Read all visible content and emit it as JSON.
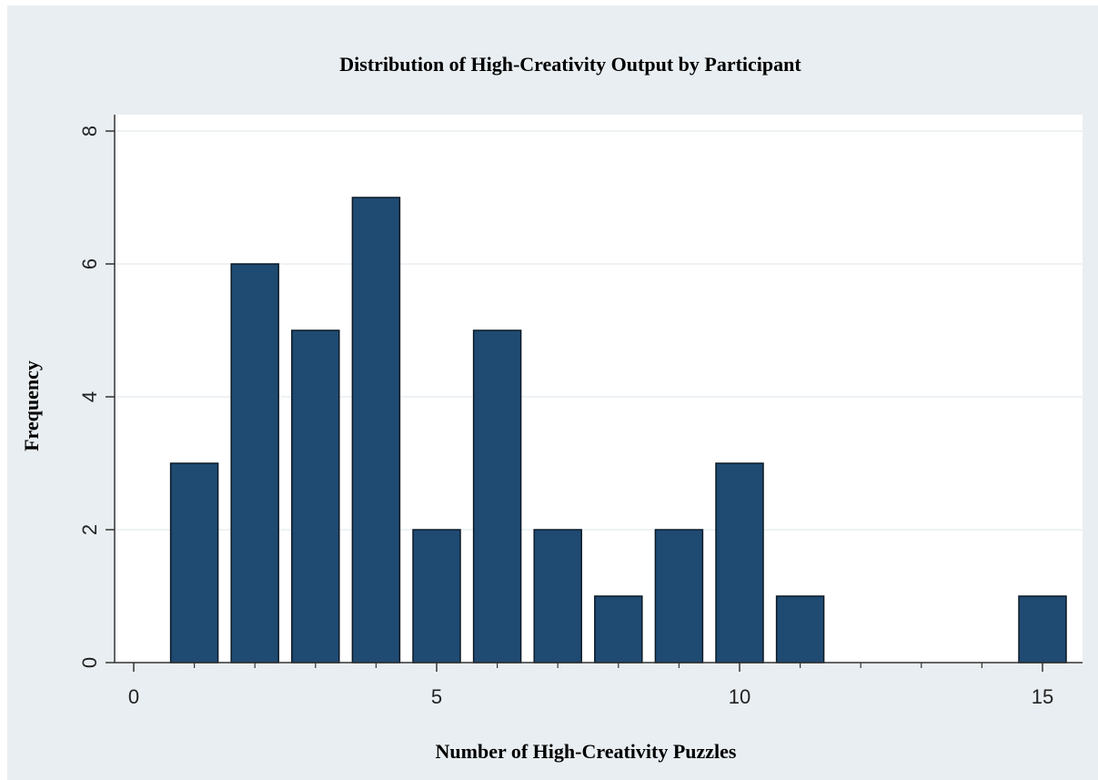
{
  "chart_data": {
    "type": "bar",
    "title": "Distribution of High-Creativity Output by Participant",
    "xlabel": "Number of High-Creativity Puzzles",
    "ylabel": "Frequency",
    "x": [
      1,
      2,
      3,
      4,
      5,
      6,
      7,
      8,
      9,
      10,
      11,
      15
    ],
    "values": [
      3,
      6,
      5,
      7,
      2,
      5,
      2,
      1,
      2,
      3,
      1,
      1
    ],
    "xlim": [
      0,
      15.5
    ],
    "ylim": [
      0,
      8
    ],
    "x_ticks": [
      "0",
      "5",
      "10",
      "15"
    ],
    "x_tick_values": [
      0,
      5,
      10,
      15
    ],
    "x_minor_ticks": [
      1,
      2,
      3,
      4,
      6,
      7,
      8,
      9,
      11,
      12,
      13,
      14
    ],
    "y_ticks": [
      "0",
      "2",
      "4",
      "6",
      "8"
    ],
    "y_tick_values": [
      0,
      2,
      4,
      6,
      8
    ],
    "grid": "horizontal",
    "colors": {
      "bar_fill": "#1f4a72",
      "bar_stroke": "#0b1a27",
      "plot_bg": "#ffffff",
      "outer_bg": "#e9eef2",
      "grid": "#e4eaee",
      "axis": "#333333"
    }
  }
}
